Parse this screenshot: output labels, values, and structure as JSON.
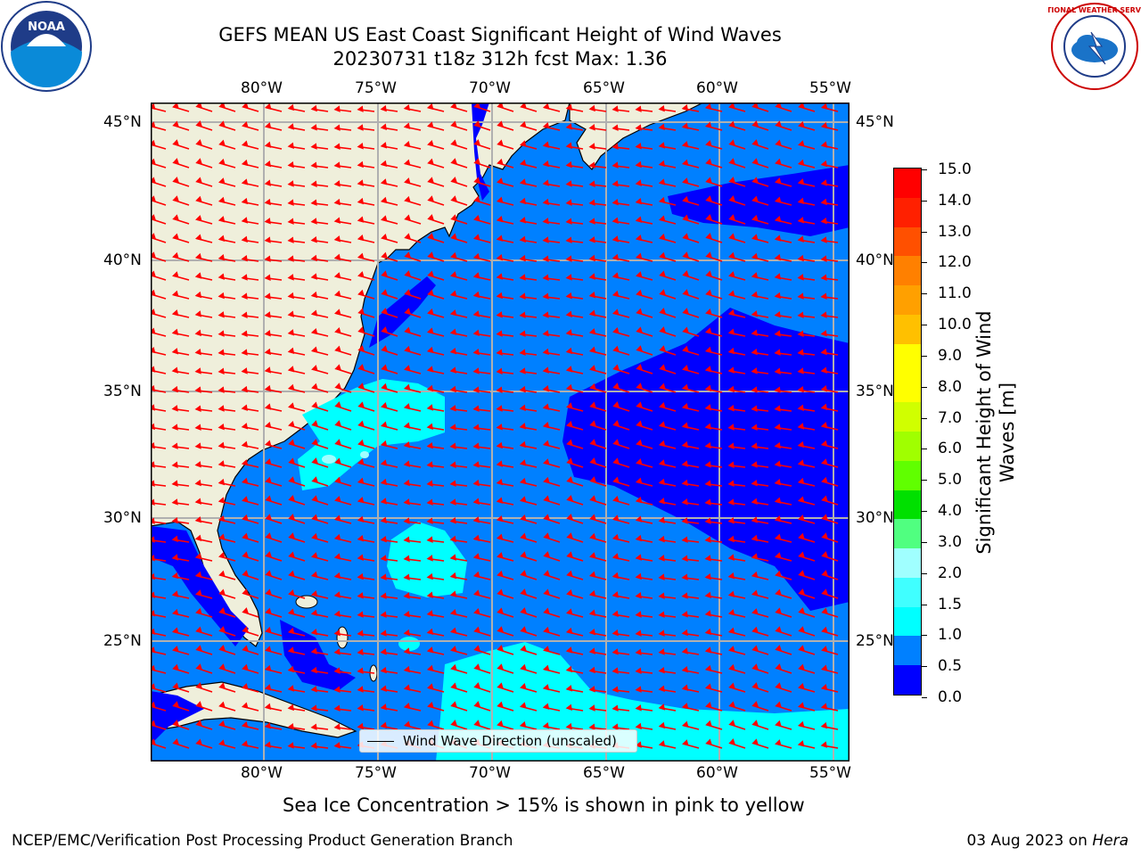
{
  "header": {
    "title_line1": "GEFS MEAN US East Coast Significant Height of Wind Waves",
    "title_line2": "20230731 t18z 312h fcst   Max: 1.36"
  },
  "logos": {
    "noaa_text": "NOAA",
    "nws_text": "NATIONAL WEATHER SERVICE"
  },
  "map": {
    "lon_labels": [
      "80°W",
      "75°W",
      "70°W",
      "65°W",
      "60°W",
      "55°W"
    ],
    "lat_labels": [
      "45°N",
      "40°N",
      "35°N",
      "30°N",
      "25°N"
    ],
    "ocean_colors": {
      "low": "#0000ff",
      "mid": "#0080ff",
      "high": "#00ffff",
      "higher": "#a0ffff"
    },
    "land_color": "#efefdb",
    "arrow_color": "#ff0000",
    "legend_label": "Wind Wave Direction (unscaled)"
  },
  "colorbar": {
    "label_line1": "Significant Height of Wind",
    "label_line2": "Waves [m]",
    "ticks": [
      "15.0",
      "14.0",
      "13.0",
      "12.0",
      "11.0",
      "10.0",
      "9.0",
      "8.0",
      "7.0",
      "6.0",
      "5.0",
      "4.0",
      "3.0",
      "2.0",
      "1.5",
      "1.0",
      "0.5",
      "0.0"
    ],
    "colors": [
      "#0000ff",
      "#0080ff",
      "#00ffff",
      "#40ffff",
      "#a0ffff",
      "#50ff80",
      "#00e000",
      "#60ff00",
      "#a0ff00",
      "#d0ff00",
      "#ffff00",
      "#ffff00",
      "#ffc000",
      "#ffa000",
      "#ff8000",
      "#ff5000",
      "#ff2000",
      "#ff0000"
    ]
  },
  "caption": "Sea Ice Concentration > 15% is shown in pink to yellow",
  "footer": {
    "left": "NCEP/EMC/Verification Post Processing Product Generation Branch",
    "right_prefix": "03 Aug 2023 on ",
    "right_machine": "Hera"
  }
}
